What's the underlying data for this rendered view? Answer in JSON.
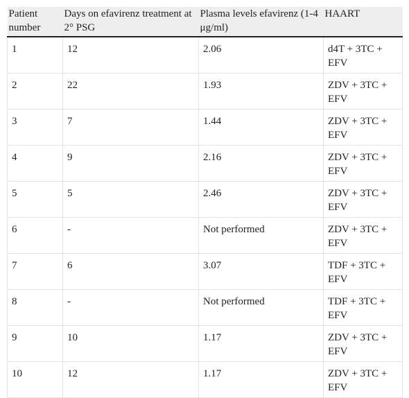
{
  "table": {
    "header": [
      "Patient number",
      "Days on efavirenz treatment at 2° PSG",
      "Plasma levels efavirenz (1-4 μg/ml)",
      "HAART"
    ],
    "rows": [
      [
        1,
        12,
        2.06,
        "d4T + 3TC + EFV"
      ],
      [
        2,
        22,
        1.93,
        "ZDV + 3TC + EFV"
      ],
      [
        3,
        7,
        1.44,
        "ZDV + 3TC + EFV"
      ],
      [
        4,
        9,
        2.16,
        "ZDV + 3TC + EFV"
      ],
      [
        5,
        5,
        2.46,
        "ZDV + 3TC + EFV"
      ],
      [
        6,
        "-",
        "Not performed",
        "ZDV + 3TC + EFV"
      ],
      [
        7,
        6,
        3.07,
        "TDF + 3TC + EFV"
      ],
      [
        8,
        "-",
        "Not performed",
        "TDF + 3TC + EFV"
      ],
      [
        9,
        10,
        1.17,
        "ZDV + 3TC + EFV"
      ],
      [
        10,
        12,
        1.17,
        "ZDV + 3TC + EFV"
      ]
    ]
  }
}
